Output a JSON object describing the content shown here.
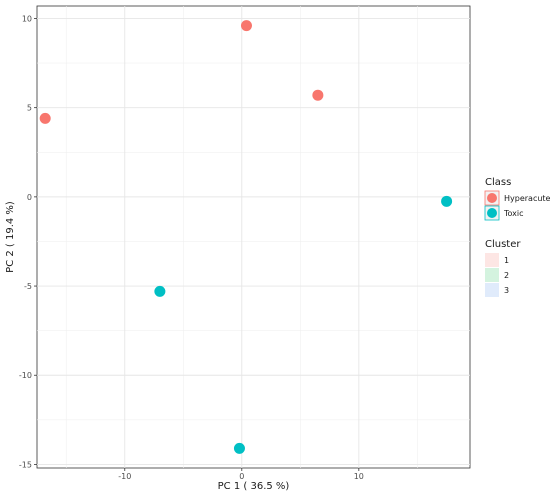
{
  "chart_data": {
    "type": "scatter",
    "title": "",
    "xlabel": "PC 1 ( 36.5 %)",
    "ylabel": "PC 2 ( 19.4 %)",
    "xlim": [
      -17.5,
      19.5
    ],
    "ylim": [
      -15.2,
      10.7
    ],
    "x_ticks": [
      -10,
      0,
      10
    ],
    "y_ticks": [
      -15,
      -10,
      -5,
      0,
      5,
      10
    ],
    "grid": true,
    "legend_position": "right",
    "series": [
      {
        "name": "Hyperacute",
        "color": "#f8766d",
        "points": [
          {
            "x": -16.8,
            "y": 4.4
          },
          {
            "x": 0.4,
            "y": 9.6
          },
          {
            "x": 6.5,
            "y": 5.7
          }
        ]
      },
      {
        "name": "Toxic",
        "color": "#00bfc4",
        "points": [
          {
            "x": -7.0,
            "y": -5.3
          },
          {
            "x": -0.2,
            "y": -14.1
          },
          {
            "x": 17.5,
            "y": -0.25
          }
        ]
      }
    ],
    "legends": {
      "class_title": "Class",
      "class_items": [
        {
          "label": "Hyperacute",
          "color": "#f8766d"
        },
        {
          "label": "Toxic",
          "color": "#00bfc4"
        }
      ],
      "cluster_title": "Cluster",
      "cluster_items": [
        {
          "label": "1",
          "color": "#fde6e4"
        },
        {
          "label": "2",
          "color": "#d4f3df"
        },
        {
          "label": "3",
          "color": "#e0ebfb"
        }
      ]
    }
  }
}
